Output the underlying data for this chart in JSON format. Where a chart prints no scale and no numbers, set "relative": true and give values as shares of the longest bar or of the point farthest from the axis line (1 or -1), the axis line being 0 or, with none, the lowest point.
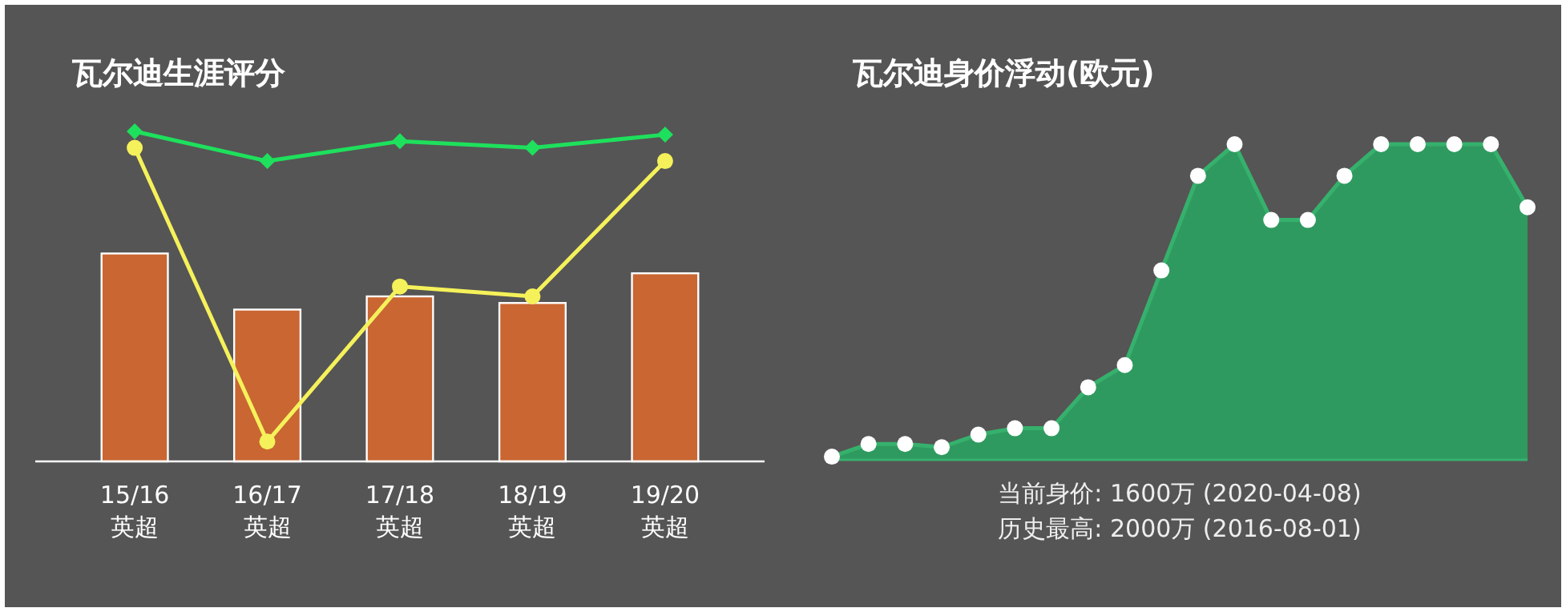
{
  "chart_data": [
    {
      "type": "bar",
      "title": "瓦尔迪生涯评分",
      "relative": true,
      "categories": [
        "15/16\n英超",
        "16/17\n英超",
        "17/18\n英超",
        "18/19\n英超",
        "19/20\n英超"
      ],
      "series": [
        {
          "type": "bar",
          "color": "#c96632",
          "values": [
            0.63,
            0.46,
            0.5,
            0.48,
            0.57
          ]
        },
        {
          "type": "line",
          "color": "#1ee05c",
          "marker": "diamond",
          "values": [
            1,
            0.91,
            0.97,
            0.95,
            0.99
          ]
        },
        {
          "type": "line",
          "color": "#f5f15a",
          "marker": "circle",
          "values": [
            0.95,
            0.06,
            0.53,
            0.5,
            0.91
          ]
        }
      ]
    },
    {
      "type": "area",
      "title": "瓦尔迪身价浮动(欧元)",
      "relative": true,
      "color": "#2f9a5f",
      "marker": "circle",
      "categories": [
        null,
        null,
        null,
        null,
        null,
        null,
        null,
        null,
        null,
        null,
        null,
        null,
        null,
        null,
        null,
        null,
        null,
        null,
        null,
        null
      ],
      "values": [
        0.01,
        0.05,
        0.05,
        0.04,
        0.08,
        0.1,
        0.1,
        0.23,
        0.3,
        0.6,
        0.9,
        1,
        0.76,
        0.76,
        0.9,
        1,
        1,
        1,
        1,
        0.8
      ],
      "annotations": [
        "当前身价: 1600万 (2020-04-08)",
        "历史最高: 2000万 (2016-08-01)"
      ]
    }
  ]
}
